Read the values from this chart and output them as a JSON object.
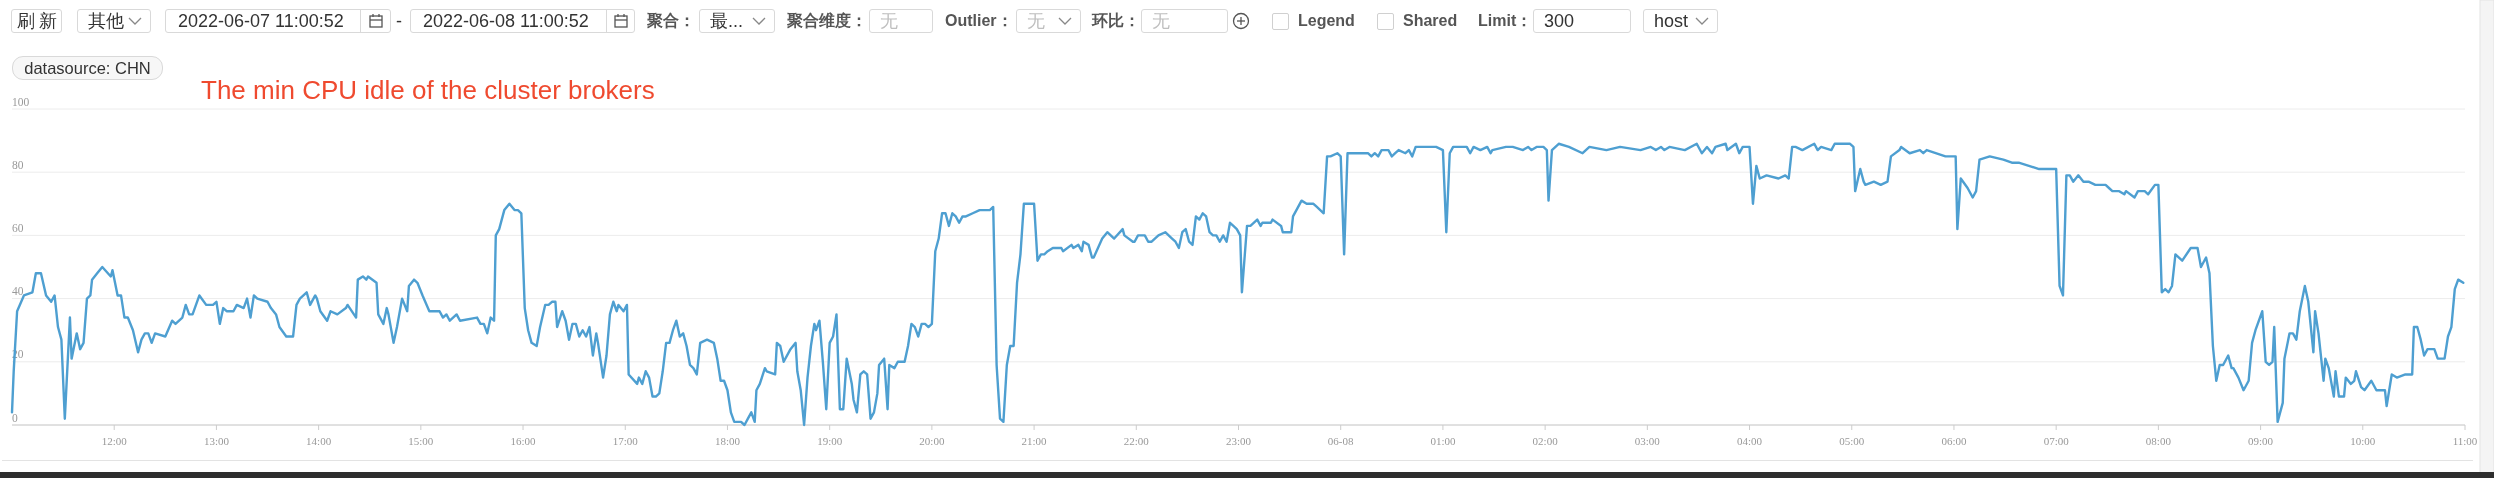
{
  "chart_data": {
    "type": "line",
    "title": "The min CPU idle of the cluster brokers",
    "annotations": [
      "刷新",
      "其他",
      "2022-06-07 11:00:52",
      "-",
      "2022-06-08 11:00:52",
      "聚合：",
      "最...",
      "聚合维度：",
      "无",
      "Outlier：",
      "无",
      "环比：",
      "无",
      "Legend",
      "Shared",
      "Limit：",
      "300",
      "host",
      "datasource: CHN"
    ],
    "xlim": [
      "2022-06-07T11:00",
      "2022-06-08T11:00"
    ],
    "ylim": [
      0,
      100
    ],
    "yticks": [
      0,
      20,
      40,
      60,
      80,
      100
    ],
    "xticks": [
      {
        "value": "2022-06-07T12:00",
        "label": "12:00"
      },
      {
        "value": "2022-06-07T13:00",
        "label": "13:00"
      },
      {
        "value": "2022-06-07T14:00",
        "label": "14:00"
      },
      {
        "value": "2022-06-07T15:00",
        "label": "15:00"
      },
      {
        "value": "2022-06-07T16:00",
        "label": "16:00"
      },
      {
        "value": "2022-06-07T17:00",
        "label": "17:00"
      },
      {
        "value": "2022-06-07T18:00",
        "label": "18:00"
      },
      {
        "value": "2022-06-07T19:00",
        "label": "19:00"
      },
      {
        "value": "2022-06-07T20:00",
        "label": "20:00"
      },
      {
        "value": "2022-06-07T21:00",
        "label": "21:00"
      },
      {
        "value": "2022-06-07T22:00",
        "label": "22:00"
      },
      {
        "value": "2022-06-07T23:00",
        "label": "23:00"
      },
      {
        "value": "2022-06-08T00:00",
        "label": "06-08"
      },
      {
        "value": "2022-06-08T01:00",
        "label": "01:00"
      },
      {
        "value": "2022-06-08T02:00",
        "label": "02:00"
      },
      {
        "value": "2022-06-08T03:00",
        "label": "03:00"
      },
      {
        "value": "2022-06-08T04:00",
        "label": "04:00"
      },
      {
        "value": "2022-06-08T05:00",
        "label": "05:00"
      },
      {
        "value": "2022-06-08T06:00",
        "label": "06:00"
      },
      {
        "value": "2022-06-08T07:00",
        "label": "07:00"
      },
      {
        "value": "2022-06-08T08:00",
        "label": "08:00"
      },
      {
        "value": "2022-06-08T09:00",
        "label": "09:00"
      },
      {
        "value": "2022-06-08T10:00",
        "label": "10:00"
      },
      {
        "value": "2022-06-08T11:00",
        "label": "11:00"
      }
    ],
    "grid": "y",
    "x": [
      "2022-06-07T11:00",
      "2022-06-07T11:01",
      "2022-06-07T11:03",
      "2022-06-07T11:07",
      "2022-06-07T11:12",
      "2022-06-07T11:14",
      "2022-06-07T11:17",
      "2022-06-07T11:20",
      "2022-06-07T11:23",
      "2022-06-07T11:25",
      "2022-06-07T11:27",
      "2022-06-07T11:29",
      "2022-06-07T11:31",
      "2022-06-07T11:34",
      "2022-06-07T11:35",
      "2022-06-07T11:38",
      "2022-06-07T11:40",
      "2022-06-07T11:42",
      "2022-06-07T11:44",
      "2022-06-07T11:46",
      "2022-06-07T11:47",
      "2022-06-07T11:50",
      "2022-06-07T11:53",
      "2022-06-07T11:58",
      "2022-06-07T11:59",
      "2022-06-07T12:02",
      "2022-06-07T12:04",
      "2022-06-07T12:06",
      "2022-06-07T12:08",
      "2022-06-07T12:11",
      "2022-06-07T12:14",
      "2022-06-07T12:16",
      "2022-06-07T12:18",
      "2022-06-07T12:20",
      "2022-06-07T12:22",
      "2022-06-07T12:24",
      "2022-06-07T12:30",
      "2022-06-07T12:34",
      "2022-06-07T12:36",
      "2022-06-07T12:40",
      "2022-06-07T12:42",
      "2022-06-07T12:44",
      "2022-06-07T12:46",
      "2022-06-07T12:50",
      "2022-06-07T12:54",
      "2022-06-07T12:58",
      "2022-06-07T13:00",
      "2022-06-07T13:02",
      "2022-06-07T13:04",
      "2022-06-07T13:06",
      "2022-06-07T13:10",
      "2022-06-07T13:12",
      "2022-06-07T13:16",
      "2022-06-07T13:18",
      "2022-06-07T13:20",
      "2022-06-07T13:22",
      "2022-06-07T13:24",
      "2022-06-07T13:30",
      "2022-06-07T13:32",
      "2022-06-07T13:35",
      "2022-06-07T13:37",
      "2022-06-07T13:41",
      "2022-06-07T13:45",
      "2022-06-07T13:47",
      "2022-06-07T13:49",
      "2022-06-07T13:53",
      "2022-06-07T13:55",
      "2022-06-07T13:58",
      "2022-06-07T13:59",
      "2022-06-07T14:01",
      "2022-06-07T14:05",
      "2022-06-07T14:07",
      "2022-06-07T14:11",
      "2022-06-07T14:16",
      "2022-06-07T14:17",
      "2022-06-07T14:22",
      "2022-06-07T14:23",
      "2022-06-07T14:26",
      "2022-06-07T14:28",
      "2022-06-07T14:29",
      "2022-06-07T14:34",
      "2022-06-07T14:35",
      "2022-06-07T14:38",
      "2022-06-07T14:40",
      "2022-06-07T14:41",
      "2022-06-07T14:44",
      "2022-06-07T14:46",
      "2022-06-07T14:49",
      "2022-06-07T14:52",
      "2022-06-07T14:53",
      "2022-06-07T14:56",
      "2022-06-07T14:58",
      "2022-06-07T15:01",
      "2022-06-07T15:05",
      "2022-06-07T15:11",
      "2022-06-07T15:13",
      "2022-06-07T15:15",
      "2022-06-07T15:17",
      "2022-06-07T15:21",
      "2022-06-07T15:23",
      "2022-06-07T15:33",
      "2022-06-07T15:35",
      "2022-06-07T15:37",
      "2022-06-07T15:39",
      "2022-06-07T15:41",
      "2022-06-07T15:43",
      "2022-06-07T15:44",
      "2022-06-07T15:46",
      "2022-06-07T15:49",
      "2022-06-07T15:52",
      "2022-06-07T15:55",
      "2022-06-07T15:57",
      "2022-06-07T15:59",
      "2022-06-07T16:01",
      "2022-06-07T16:03",
      "2022-06-07T16:05",
      "2022-06-07T16:08",
      "2022-06-07T16:10",
      "2022-06-07T16:13",
      "2022-06-07T16:15",
      "2022-06-07T16:17",
      "2022-06-07T16:19",
      "2022-06-07T16:20",
      "2022-06-07T16:23",
      "2022-06-07T16:25",
      "2022-06-07T16:27",
      "2022-06-07T16:29",
      "2022-06-07T16:31",
      "2022-06-07T16:33",
      "2022-06-07T16:35",
      "2022-06-07T16:37",
      "2022-06-07T16:39",
      "2022-06-07T16:41",
      "2022-06-07T16:43",
      "2022-06-07T16:44",
      "2022-06-07T16:47",
      "2022-06-07T16:49",
      "2022-06-07T16:51",
      "2022-06-07T16:53",
      "2022-06-07T16:55",
      "2022-06-07T16:56",
      "2022-06-07T16:59",
      "2022-06-07T17:01",
      "2022-06-07T17:02",
      "2022-06-07T17:07",
      "2022-06-07T17:08",
      "2022-06-07T17:10",
      "2022-06-07T17:12",
      "2022-06-07T17:14",
      "2022-06-07T17:16",
      "2022-06-07T17:18",
      "2022-06-07T17:20",
      "2022-06-07T17:22",
      "2022-06-07T17:24",
      "2022-06-07T17:26",
      "2022-06-07T17:28",
      "2022-06-07T17:30",
      "2022-06-07T17:32",
      "2022-06-07T17:34",
      "2022-06-07T17:36",
      "2022-06-07T17:38",
      "2022-06-07T17:40",
      "2022-06-07T17:42",
      "2022-06-07T17:44",
      "2022-06-07T17:48",
      "2022-06-07T17:52",
      "2022-06-07T17:54",
      "2022-06-07T17:56",
      "2022-06-07T17:58",
      "2022-06-07T18:00",
      "2022-06-07T18:02",
      "2022-06-07T18:04",
      "2022-06-07T18:08",
      "2022-06-07T18:10",
      "2022-06-07T18:12",
      "2022-06-07T18:14",
      "2022-06-07T18:16",
      "2022-06-07T18:17",
      "2022-06-07T18:19",
      "2022-06-07T18:22",
      "2022-06-07T18:23",
      "2022-06-07T18:28",
      "2022-06-07T18:29",
      "2022-06-07T18:31",
      "2022-06-07T18:33",
      "2022-06-07T18:37",
      "2022-06-07T18:40",
      "2022-06-07T18:41",
      "2022-06-07T18:43",
      "2022-06-07T18:45",
      "2022-06-07T18:47",
      "2022-06-07T18:49",
      "2022-06-07T18:51",
      "2022-06-07T18:52",
      "2022-06-07T18:54",
      "2022-06-07T18:56",
      "2022-06-07T18:58",
      "2022-06-07T19:00",
      "2022-06-07T19:02",
      "2022-06-07T19:04",
      "2022-06-07T19:06",
      "2022-06-07T19:08",
      "2022-06-07T19:10",
      "2022-06-07T19:13",
      "2022-06-07T19:14",
      "2022-06-07T19:16",
      "2022-06-07T19:18",
      "2022-06-07T19:20",
      "2022-06-07T19:22",
      "2022-06-07T19:24",
      "2022-06-07T19:26",
      "2022-06-07T19:28",
      "2022-06-07T19:29",
      "2022-06-07T19:32",
      "2022-06-07T19:34",
      "2022-06-07T19:35",
      "2022-06-07T19:38",
      "2022-06-07T19:40",
      "2022-06-07T19:44",
      "2022-06-07T19:46",
      "2022-06-07T19:48",
      "2022-06-07T19:50",
      "2022-06-07T19:52",
      "2022-06-07T19:54",
      "2022-06-07T19:56",
      "2022-06-07T19:58",
      "2022-06-07T20:00",
      "2022-06-07T20:02",
      "2022-06-07T20:04",
      "2022-06-07T20:06",
      "2022-06-07T20:08",
      "2022-06-07T20:10",
      "2022-06-07T20:12",
      "2022-06-07T20:14",
      "2022-06-07T20:16",
      "2022-06-07T20:18",
      "2022-06-07T20:20",
      "2022-06-07T20:24",
      "2022-06-07T20:28",
      "2022-06-07T20:34",
      "2022-06-07T20:36",
      "2022-06-07T20:38",
      "2022-06-07T20:40",
      "2022-06-07T20:42",
      "2022-06-07T20:44",
      "2022-06-07T20:46",
      "2022-06-07T20:48",
      "2022-06-07T20:50",
      "2022-06-07T20:52",
      "2022-06-07T20:54",
      "2022-06-07T20:58",
      "2022-06-07T21:00",
      "2022-06-07T21:02",
      "2022-06-07T21:04",
      "2022-06-07T21:06",
      "2022-06-07T21:08",
      "2022-06-07T21:11",
      "2022-06-07T21:16",
      "2022-06-07T21:17",
      "2022-06-07T21:22",
      "2022-06-07T21:23",
      "2022-06-07T21:26",
      "2022-06-07T21:28",
      "2022-06-07T21:29",
      "2022-06-07T21:32",
      "2022-06-07T21:34",
      "2022-06-07T21:35",
      "2022-06-07T21:40",
      "2022-06-07T21:43",
      "2022-06-07T21:47",
      "2022-06-07T21:52",
      "2022-06-07T21:53",
      "2022-06-07T21:58",
      "2022-06-07T21:59",
      "2022-06-07T22:01",
      "2022-06-07T22:05",
      "2022-06-07T22:07",
      "2022-06-07T22:09",
      "2022-06-07T22:13",
      "2022-06-07T22:17",
      "2022-06-07T22:21",
      "2022-06-07T22:23",
      "2022-06-07T22:25",
      "2022-06-07T22:27",
      "2022-06-07T22:29",
      "2022-06-07T22:31",
      "2022-06-07T22:33",
      "2022-06-07T22:35",
      "2022-06-07T22:37",
      "2022-06-07T22:39",
      "2022-06-07T22:41",
      "2022-06-07T22:43",
      "2022-06-07T22:45",
      "2022-06-07T22:47",
      "2022-06-07T22:49",
      "2022-06-07T22:51",
      "2022-06-07T22:53",
      "2022-06-07T22:55",
      "2022-06-07T22:57",
      "2022-06-07T22:59",
      "2022-06-07T23:01",
      "2022-06-07T23:02",
      "2022-06-07T23:05",
      "2022-06-07T23:07",
      "2022-06-07T23:11",
      "2022-06-07T23:13",
      "2022-06-07T23:14",
      "2022-06-07T23:19",
      "2022-06-07T23:20",
      "2022-06-07T23:25",
      "2022-06-07T23:26",
      "2022-06-07T23:31",
      "2022-06-07T23:32",
      "2022-06-07T23:34",
      "2022-06-07T23:37",
      "2022-06-07T23:40",
      "2022-06-07T23:44",
      "2022-06-07T23:46",
      "2022-06-07T23:50",
      "2022-06-07T23:52",
      "2022-06-07T23:54",
      "2022-06-07T23:58",
      "2022-06-08T00:00",
      "2022-06-08T00:02",
      "2022-06-08T00:04",
      "2022-06-08T00:08",
      "2022-06-08T00:12",
      "2022-06-08T00:16",
      "2022-06-08T00:18",
      "2022-06-08T00:20",
      "2022-06-08T00:22",
      "2022-06-08T00:24",
      "2022-06-08T00:28",
      "2022-06-08T00:30",
      "2022-06-08T00:32",
      "2022-06-08T00:34",
      "2022-06-08T00:38",
      "2022-06-08T00:40",
      "2022-06-08T00:42",
      "2022-06-08T00:44",
      "2022-06-08T00:52",
      "2022-06-08T00:56",
      "2022-06-08T01:00",
      "2022-06-08T01:02",
      "2022-06-08T01:04",
      "2022-06-08T01:06",
      "2022-06-08T01:10",
      "2022-06-08T01:14",
      "2022-06-08T01:16",
      "2022-06-08T01:18",
      "2022-06-08T01:22",
      "2022-06-08T01:26",
      "2022-06-08T01:28",
      "2022-06-08T01:29",
      "2022-06-08T01:37",
      "2022-06-08T01:41",
      "2022-06-08T01:47",
      "2022-06-08T01:50",
      "2022-06-08T01:52",
      "2022-06-08T01:55",
      "2022-06-08T01:59",
      "2022-06-08T02:01",
      "2022-06-08T02:02",
      "2022-06-08T02:04",
      "2022-06-08T02:08",
      "2022-06-08T02:14",
      "2022-06-08T02:22",
      "2022-06-08T02:26",
      "2022-06-08T02:36",
      "2022-06-08T02:44",
      "2022-06-08T02:56",
      "2022-06-08T03:02",
      "2022-06-08T03:05",
      "2022-06-08T03:08",
      "2022-06-08T03:10",
      "2022-06-08T03:13",
      "2022-06-08T03:22",
      "2022-06-08T03:29",
      "2022-06-08T03:32",
      "2022-06-08T03:35",
      "2022-06-08T03:38",
      "2022-06-08T03:40",
      "2022-06-08T03:46",
      "2022-06-08T03:47",
      "2022-06-08T03:52",
      "2022-06-08T03:54",
      "2022-06-08T03:56",
      "2022-06-08T04:00",
      "2022-06-08T04:02",
      "2022-06-08T04:04",
      "2022-06-08T04:06",
      "2022-06-08T04:10",
      "2022-06-08T04:17",
      "2022-06-08T04:21",
      "2022-06-08T04:23",
      "2022-06-08T04:25",
      "2022-06-08T04:27",
      "2022-06-08T04:31",
      "2022-06-08T04:38",
      "2022-06-08T04:40",
      "2022-06-08T04:42",
      "2022-06-08T04:48",
      "2022-06-08T04:50",
      "2022-06-08T04:59",
      "2022-06-08T05:01",
      "2022-06-08T05:02",
      "2022-06-08T05:05",
      "2022-06-08T05:07",
      "2022-06-08T05:08",
      "2022-06-08T05:13",
      "2022-06-08T05:17",
      "2022-06-08T05:21",
      "2022-06-08T05:23",
      "2022-06-08T05:28",
      "2022-06-08T05:29",
      "2022-06-08T05:34",
      "2022-06-08T05:40",
      "2022-06-08T05:42",
      "2022-06-08T05:44",
      "2022-06-08T05:55",
      "2022-06-08T06:01",
      "2022-06-08T06:02",
      "2022-06-08T06:04",
      "2022-06-08T06:08",
      "2022-06-08T06:11",
      "2022-06-08T06:13",
      "2022-06-08T06:15",
      "2022-06-08T06:21",
      "2022-06-08T06:29",
      "2022-06-08T06:34",
      "2022-06-08T06:38",
      "2022-06-08T06:44",
      "2022-06-08T06:50",
      "2022-06-08T06:52",
      "2022-06-08T07:00",
      "2022-06-08T07:02",
      "2022-06-08T07:04",
      "2022-06-08T07:06",
      "2022-06-08T07:08",
      "2022-06-08T07:10",
      "2022-06-08T07:13",
      "2022-06-08T07:16",
      "2022-06-08T07:19",
      "2022-06-08T07:23",
      "2022-06-08T07:29",
      "2022-06-08T07:31",
      "2022-06-08T07:33",
      "2022-06-08T07:37",
      "2022-06-08T07:40",
      "2022-06-08T07:41",
      "2022-06-08T07:46",
      "2022-06-08T07:48",
      "2022-06-08T07:52",
      "2022-06-08T07:54",
      "2022-06-08T07:58",
      "2022-06-08T08:00",
      "2022-06-08T08:02",
      "2022-06-08T08:04",
      "2022-06-08T08:06",
      "2022-06-08T08:08",
      "2022-06-08T08:10",
      "2022-06-08T08:14",
      "2022-06-08T08:19",
      "2022-06-08T08:23",
      "2022-06-08T08:25",
      "2022-06-08T08:28",
      "2022-06-08T08:30",
      "2022-06-08T08:32",
      "2022-06-08T08:34",
      "2022-06-08T08:36",
      "2022-06-08T08:38",
      "2022-06-08T08:41",
      "2022-06-08T08:43",
      "2022-06-08T08:44",
      "2022-06-08T08:47",
      "2022-06-08T08:50",
      "2022-06-08T08:53",
      "2022-06-08T08:55",
      "2022-06-08T08:57",
      "2022-06-08T09:01",
      "2022-06-08T09:03",
      "2022-06-08T09:05",
      "2022-06-08T09:07",
      "2022-06-08T09:08",
      "2022-06-08T09:10",
      "2022-06-08T09:13",
      "2022-06-08T09:14",
      "2022-06-08T09:17",
      "2022-06-08T09:19",
      "2022-06-08T09:21",
      "2022-06-08T09:23",
      "2022-06-08T09:26",
      "2022-06-08T09:28",
      "2022-06-08T09:31",
      "2022-06-08T09:32",
      "2022-06-08T09:34",
      "2022-06-08T09:37",
      "2022-06-08T09:38",
      "2022-06-08T09:40",
      "2022-06-08T09:43",
      "2022-06-08T09:44",
      "2022-06-08T09:46",
      "2022-06-08T09:49",
      "2022-06-08T09:50",
      "2022-06-08T09:53",
      "2022-06-08T09:55",
      "2022-06-08T09:56",
      "2022-06-08T09:59",
      "2022-06-08T10:01",
      "2022-06-08T10:05",
      "2022-06-08T10:08",
      "2022-06-08T10:13",
      "2022-06-08T10:14",
      "2022-06-08T10:17",
      "2022-06-08T10:20",
      "2022-06-08T10:25",
      "2022-06-08T10:29",
      "2022-06-08T10:30",
      "2022-06-08T10:32",
      "2022-06-08T10:34",
      "2022-06-08T10:36",
      "2022-06-08T10:38",
      "2022-06-08T10:42",
      "2022-06-08T10:44",
      "2022-06-08T10:48",
      "2022-06-08T10:50",
      "2022-06-08T10:52",
      "2022-06-08T10:54",
      "2022-06-08T10:56",
      "2022-06-08T10:59"
    ],
    "series": [
      {
        "color": "#4e9fd1",
        "values": [
          4,
          17,
          36,
          41,
          42,
          48,
          48,
          41,
          39,
          41,
          31,
          27,
          2,
          34,
          21,
          29,
          24,
          26,
          40,
          41,
          46,
          48,
          50,
          47,
          49,
          41,
          41,
          34,
          34,
          30,
          23,
          27,
          29,
          29,
          26,
          29,
          28,
          33,
          32,
          34,
          38,
          35,
          35,
          41,
          38,
          38,
          39,
          32,
          37,
          36,
          36,
          38,
          37,
          40,
          34,
          41,
          40,
          39,
          37,
          35,
          31,
          28,
          28,
          38,
          40,
          42,
          38,
          41,
          40,
          36,
          33,
          36,
          35,
          37,
          38,
          34,
          46,
          47,
          46,
          47,
          45,
          35,
          32,
          37,
          35,
          26,
          31,
          40,
          36,
          44,
          46,
          45,
          41,
          36,
          36,
          34,
          35,
          33,
          35,
          33,
          34,
          32,
          32,
          29,
          34,
          33,
          60,
          62,
          68,
          70,
          68,
          68,
          67,
          37,
          30,
          26,
          25,
          31,
          38,
          38,
          39,
          39,
          31,
          36,
          33,
          27,
          32,
          32,
          28,
          30,
          28,
          31,
          22,
          29,
          26,
          15,
          22,
          35,
          39,
          36,
          38,
          36,
          38,
          16,
          13,
          15,
          13,
          17,
          15,
          9,
          9,
          10,
          17,
          26,
          26,
          30,
          33,
          28,
          29,
          25,
          19,
          18,
          16,
          26,
          27,
          26,
          21,
          14,
          14,
          11,
          4,
          1,
          1,
          0,
          2,
          4,
          1,
          11,
          13,
          18,
          17,
          16,
          26,
          25,
          20,
          24,
          26,
          17,
          11,
          0,
          15,
          25,
          32,
          30,
          33,
          20,
          5,
          26,
          28,
          35,
          5,
          5,
          21,
          13,
          8,
          4,
          16,
          17,
          16,
          2,
          4,
          10,
          19,
          21,
          5,
          19,
          18,
          20,
          20,
          25,
          32,
          31,
          28,
          32,
          32,
          31,
          32,
          55,
          59,
          67,
          67,
          63,
          67,
          66,
          64,
          66,
          66,
          67,
          68,
          68,
          69,
          19,
          2,
          1,
          19,
          25,
          25,
          45,
          54,
          70,
          70,
          70,
          52,
          54,
          54,
          55,
          56,
          56,
          55,
          57,
          56,
          57,
          55,
          58,
          57,
          53,
          53,
          59,
          61,
          59,
          62,
          60,
          58,
          58,
          60,
          60,
          58,
          58,
          60,
          61,
          59,
          58,
          56,
          61,
          62,
          58,
          57,
          66,
          65,
          67,
          66,
          61,
          60,
          60,
          58,
          60,
          58,
          64,
          63,
          62,
          60,
          42,
          63,
          63,
          65,
          63,
          64,
          64,
          65,
          63,
          61,
          61,
          66,
          68,
          71,
          70,
          70,
          69,
          67,
          85,
          85,
          86,
          85,
          54,
          86,
          86,
          86,
          86,
          85,
          86,
          85,
          87,
          87,
          85,
          86,
          87,
          86,
          87,
          85,
          88,
          88,
          88,
          87,
          61,
          86,
          88,
          88,
          88,
          86,
          88,
          87,
          88,
          86,
          87,
          88,
          88,
          87,
          88,
          87,
          88,
          88,
          87,
          71,
          87,
          89,
          88,
          86,
          88,
          87,
          88,
          87,
          88,
          87,
          88,
          87,
          88,
          87,
          89,
          86,
          88,
          86,
          88,
          89,
          87,
          89,
          86,
          88,
          88,
          70,
          82,
          78,
          79,
          78,
          79,
          78,
          88,
          88,
          87,
          89,
          87,
          88,
          87,
          89,
          89,
          88,
          74,
          81,
          77,
          76,
          77,
          76,
          77,
          85,
          87,
          88,
          86,
          87,
          86,
          87,
          85,
          85,
          62,
          78,
          75,
          72,
          74,
          84,
          85,
          84,
          83,
          83,
          82,
          81,
          81,
          81,
          44,
          41,
          79,
          79,
          77,
          79,
          77,
          77,
          76,
          76,
          75,
          74,
          74,
          73,
          74,
          72,
          74,
          74,
          73,
          76,
          76,
          42,
          43,
          42,
          44,
          54,
          52,
          56,
          56,
          50,
          53,
          48,
          25,
          14,
          19,
          19,
          22,
          18,
          18,
          15,
          11,
          14,
          26,
          30,
          36,
          20,
          19,
          20,
          31,
          1,
          7,
          21,
          29,
          29,
          27,
          36,
          44,
          39,
          23,
          36,
          29,
          14,
          21,
          18,
          9,
          17,
          9,
          9,
          15,
          13,
          14,
          17,
          12,
          11,
          14,
          11,
          11,
          6,
          16,
          15,
          16,
          16,
          31,
          31,
          27,
          22,
          24,
          24,
          21,
          21,
          28,
          31,
          43,
          46,
          45
        ]
      }
    ]
  }
}
